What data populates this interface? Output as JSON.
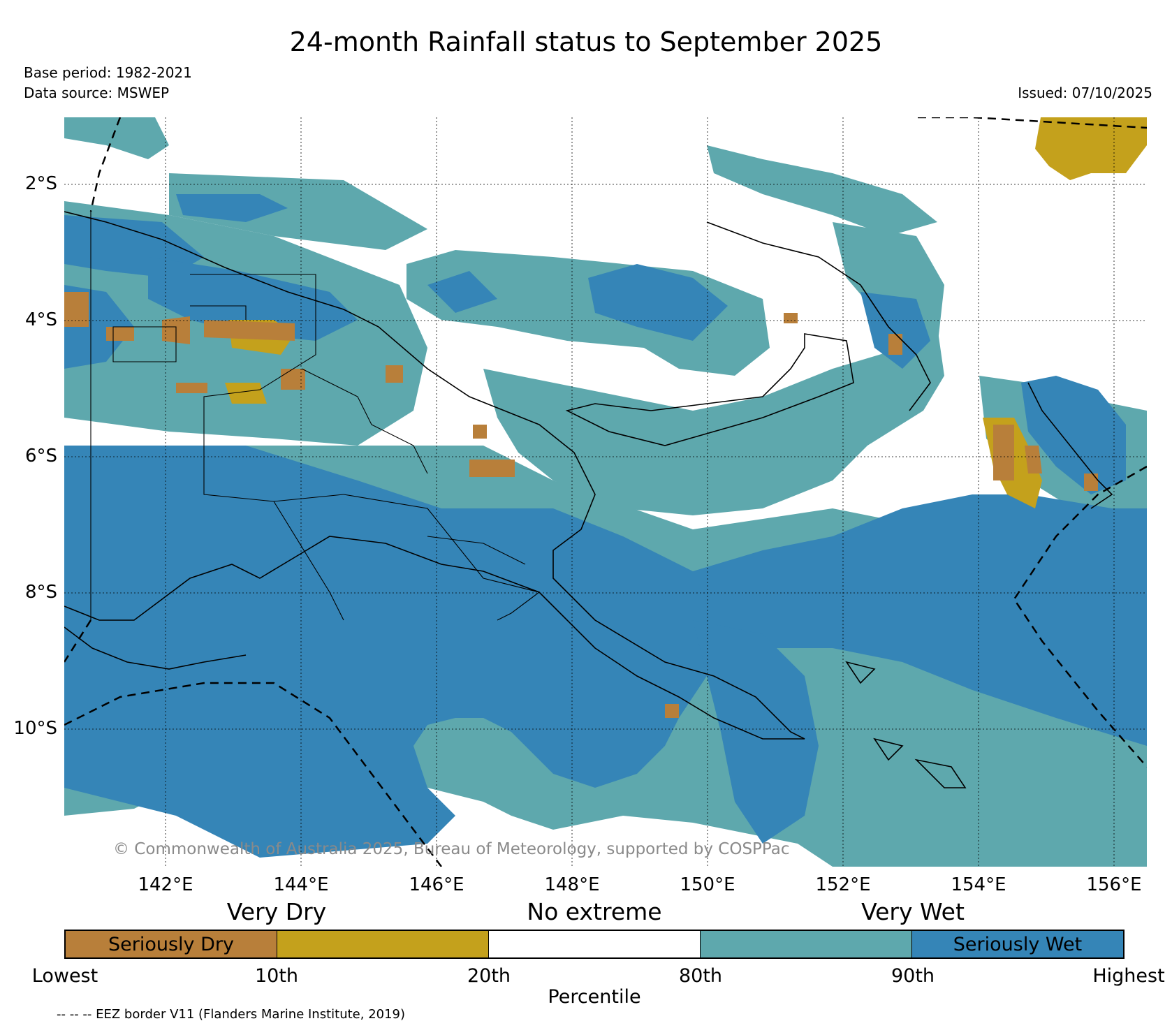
{
  "title": "24-month Rainfall status to September 2025",
  "base_period": "Base period: 1982-2021",
  "data_source": "Data source: MSWEP",
  "issued": "Issued: 07/10/2025",
  "watermark": "© Commonwealth of Australia 2025, Bureau of Meteorology, supported by COSPPac",
  "map": {
    "lon_range": [
      140.5,
      156.5
    ],
    "lat_range": [
      -12.0,
      -1.0
    ],
    "lat_ticks": [
      "2°S",
      "4°S",
      "6°S",
      "8°S",
      "10°S"
    ],
    "lon_ticks": [
      "142°E",
      "144°E",
      "146°E",
      "148°E",
      "150°E",
      "152°E",
      "154°E",
      "156°E"
    ]
  },
  "legend": {
    "categories": [
      "Very Dry",
      "No extreme",
      "Very Wet"
    ],
    "segments": [
      {
        "label": "Seriously Dry",
        "color": "#b87f3a"
      },
      {
        "label": "",
        "color": "#c4a11c"
      },
      {
        "label": "",
        "color": "#ffffff"
      },
      {
        "label": "",
        "color": "#5ea8ad"
      },
      {
        "label": "Seriously Wet",
        "color": "#3585b7"
      }
    ],
    "percentile_ticks": [
      "Lowest",
      "10th",
      "20th",
      "80th",
      "90th",
      "Highest"
    ],
    "axis_label": "Percentile"
  },
  "eez_note": "-- -- -- EEZ border V11 (Flanders Marine Institute, 2019)",
  "colors": {
    "seriously_dry": "#b87f3a",
    "very_dry": "#c4a11c",
    "very_wet": "#5ea8ad",
    "seriously_wet": "#3585b7"
  }
}
